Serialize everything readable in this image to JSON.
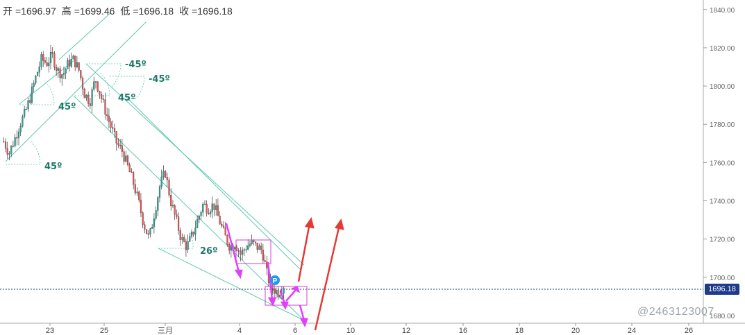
{
  "ohlc": {
    "open_label": "开",
    "open": "=1696.97",
    "high_label": "高",
    "high": "=1699.46",
    "low_label": "低",
    "low": "=1696.18",
    "close_label": "收",
    "close": "=1696.18"
  },
  "current_price": "1696.18",
  "watermark": "@2463123007",
  "colors": {
    "up": "#26a69a",
    "down": "#ef5350",
    "channel": "#5cc9b0",
    "arrow_up": "#e53935",
    "arrow_pink": "#e040fb",
    "box": "#d63fd6",
    "price_line": "#1e3a8a",
    "marker": "#2196f3"
  },
  "chart_data": {
    "type": "candlestick",
    "y_axis": {
      "ticks": [
        "1840.00",
        "1820.00",
        "1800.00",
        "1780.00",
        "1760.00",
        "1740.00",
        "1720.00",
        "1700.00",
        "1680.00"
      ],
      "range": [
        1676,
        1845
      ]
    },
    "x_axis": {
      "ticks": [
        "23",
        "25",
        "三月",
        "4",
        "6",
        "10",
        "12",
        "16",
        "18",
        "20",
        "24",
        "26"
      ]
    },
    "angle_annotations": [
      "45º",
      "45º",
      "-45º",
      "-45º",
      "45º",
      "26º"
    ],
    "marker_label": "P",
    "close_path": [
      1771,
      1765,
      1772,
      1780,
      1786,
      1795,
      1805,
      1814,
      1812,
      1816,
      1808,
      1806,
      1812,
      1814,
      1808,
      1796,
      1792,
      1804,
      1795,
      1786,
      1778,
      1770,
      1766,
      1758,
      1750,
      1740,
      1728,
      1720,
      1734,
      1748,
      1755,
      1740,
      1730,
      1720,
      1716,
      1722,
      1730,
      1738,
      1736,
      1738,
      1730,
      1722,
      1716,
      1718,
      1712,
      1716,
      1718,
      1716,
      1714,
      1700,
      1694,
      1692,
      1696
    ]
  }
}
